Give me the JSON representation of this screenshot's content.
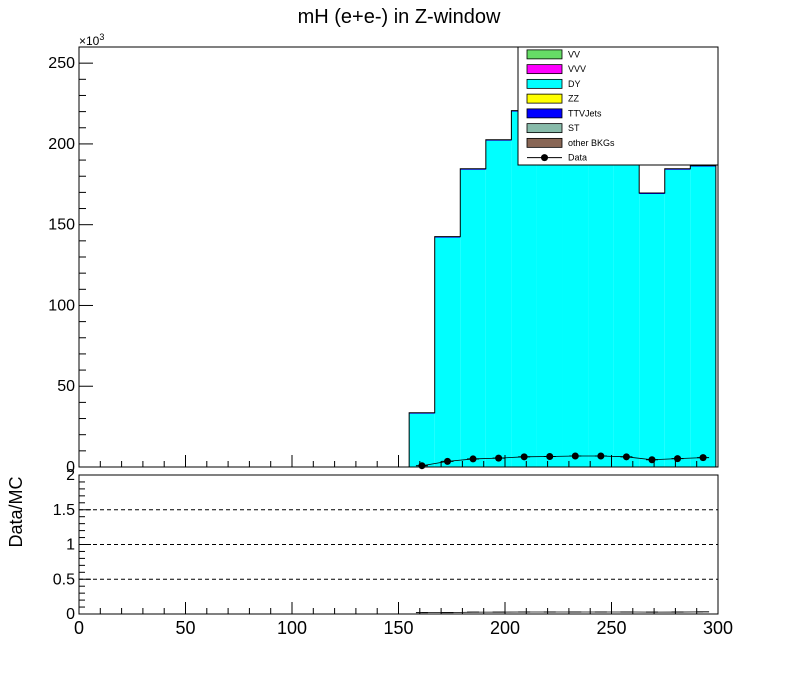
{
  "chart_data": {
    "type": "bar",
    "title": "mH (e+e-) in Z-window",
    "multiplier_label": "×10",
    "multiplier_exp": "3",
    "main_panel": {
      "stacked": true,
      "ylim": [
        0,
        260
      ],
      "y_ticks": [
        "0",
        "50",
        "100",
        "150",
        "200",
        "250"
      ],
      "xlim": [
        0,
        300
      ],
      "bin_edges": [
        155,
        167,
        179,
        191,
        203,
        215,
        227,
        239,
        251,
        263,
        275,
        287,
        299
      ],
      "series": [
        {
          "name": "DY",
          "color": "#00ffff",
          "values": [
            33,
            142,
            184,
            202,
            220,
            228,
            235,
            232,
            220,
            169,
            184,
            186
          ]
        },
        {
          "name": "TTVJets",
          "color": "#0000ff",
          "values": [
            0.6,
            0.6,
            0.6,
            0.6,
            0.6,
            0.6,
            0.6,
            0.6,
            0.6,
            0.6,
            0.6,
            0.6
          ]
        }
      ],
      "data_points": {
        "name": "Data",
        "x": [
          161,
          173,
          185,
          197,
          209,
          221,
          233,
          245,
          257,
          269,
          281,
          293
        ],
        "y": [
          0.8,
          3.5,
          5.0,
          5.5,
          6.3,
          6.5,
          6.8,
          6.8,
          6.3,
          4.5,
          5.2,
          5.8
        ]
      }
    },
    "ratio_panel": {
      "ylabel": "Data/MC",
      "ylim": [
        0,
        2
      ],
      "y_ticks": [
        "0",
        "0.5",
        "1",
        "1.5",
        "2"
      ],
      "grid_lines": [
        0.5,
        1,
        1.5
      ],
      "x_ticks": [
        "0",
        "50",
        "100",
        "150",
        "200",
        "250",
        "300"
      ],
      "x": [
        161,
        173,
        185,
        197,
        209,
        221,
        233,
        245,
        257,
        269,
        281,
        293
      ],
      "ratio": [
        0.02,
        0.02,
        0.027,
        0.027,
        0.029,
        0.029,
        0.029,
        0.029,
        0.029,
        0.027,
        0.028,
        0.031
      ]
    },
    "legend": {
      "placement": "top-right",
      "entries": [
        {
          "label": "VV",
          "color": "#66dd66",
          "kind": "box"
        },
        {
          "label": "VVV",
          "color": "#ff00ff",
          "kind": "box"
        },
        {
          "label": "DY",
          "color": "#00ffff",
          "kind": "box"
        },
        {
          "label": "ZZ",
          "color": "#ffff00",
          "kind": "box"
        },
        {
          "label": "TTVJets",
          "color": "#0000ff",
          "kind": "box"
        },
        {
          "label": "ST",
          "color": "#88bbaa",
          "kind": "box"
        },
        {
          "label": "other BKGs",
          "color": "#886655",
          "kind": "box"
        },
        {
          "label": "Data",
          "color": "#000000",
          "kind": "marker"
        }
      ]
    }
  }
}
